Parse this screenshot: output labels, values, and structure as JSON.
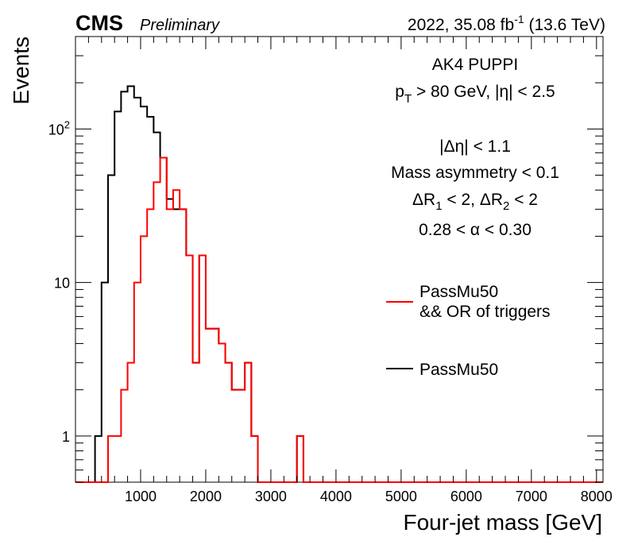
{
  "header": {
    "experiment": "CMS",
    "status": "Preliminary",
    "lumi_pre": "2022, 35.08 fb",
    "lumi_exp": "-1",
    "lumi_post": " (13.6 TeV)"
  },
  "annotations": {
    "jet_algo": "AK4 PUPPI",
    "pt_pre": "p",
    "pt_sub": "T",
    "pt_post": " > 80 GeV, |η| < 2.5",
    "deta": "|Δη| < 1.1",
    "mass_asym": "Mass asymmetry < 0.1",
    "dr_a": "ΔR",
    "dr_a_sub": "1",
    "dr_mid": " < 2, ΔR",
    "dr_b_sub": "2",
    "dr_post": " < 2",
    "alpha": "0.28 < α < 0.30"
  },
  "legend": {
    "entries": [
      {
        "line1": "PassMu50",
        "line2": "&& OR of triggers",
        "color": "#ff0000"
      },
      {
        "line1": "PassMu50",
        "line2": "",
        "color": "#000000"
      }
    ]
  },
  "chart_data": {
    "type": "histogram",
    "xlabel": "Four-jet mass [GeV]",
    "ylabel": "Events",
    "xlim": [
      0,
      8100
    ],
    "ylim": [
      0.5,
      400
    ],
    "log_y": true,
    "grid": false,
    "legend_position": "right-middle",
    "bin_width": 100,
    "x_ticks": [
      1000,
      2000,
      3000,
      4000,
      5000,
      6000,
      7000,
      8000
    ],
    "x_tick_labels": [
      "1000",
      "2000",
      "3000",
      "4000",
      "5000",
      "6000",
      "7000",
      "8000"
    ],
    "y_ticks": [
      1,
      10,
      100
    ],
    "y_tick_labels": [
      "1",
      "10",
      "10^2"
    ],
    "series": [
      {
        "name": "PassMu50 && OR of triggers",
        "color": "#ff0000",
        "bins": [
          [
            500,
            1
          ],
          [
            600,
            1
          ],
          [
            700,
            2
          ],
          [
            800,
            3
          ],
          [
            900,
            10
          ],
          [
            1000,
            20
          ],
          [
            1100,
            30
          ],
          [
            1200,
            45
          ],
          [
            1300,
            65
          ],
          [
            1400,
            30
          ],
          [
            1500,
            40
          ],
          [
            1600,
            30
          ],
          [
            1700,
            15
          ],
          [
            1800,
            3
          ],
          [
            1900,
            15
          ],
          [
            2000,
            5
          ],
          [
            2100,
            5
          ],
          [
            2200,
            4
          ],
          [
            2300,
            3
          ],
          [
            2400,
            2
          ],
          [
            2500,
            2
          ],
          [
            2600,
            3
          ],
          [
            2700,
            1
          ],
          [
            3400,
            1
          ]
        ]
      },
      {
        "name": "PassMu50",
        "color": "#000000",
        "bins": [
          [
            300,
            1
          ],
          [
            400,
            10
          ],
          [
            500,
            50
          ],
          [
            600,
            130
          ],
          [
            700,
            175
          ],
          [
            800,
            190
          ],
          [
            900,
            160
          ],
          [
            1000,
            140
          ],
          [
            1100,
            120
          ],
          [
            1200,
            95
          ],
          [
            1300,
            65
          ],
          [
            1400,
            35
          ],
          [
            1500,
            30
          ],
          [
            1600,
            30
          ],
          [
            1700,
            15
          ],
          [
            1800,
            3
          ],
          [
            1900,
            15
          ],
          [
            2000,
            5
          ],
          [
            2100,
            5
          ],
          [
            2200,
            4
          ],
          [
            2300,
            3
          ],
          [
            2400,
            2
          ],
          [
            2500,
            2
          ],
          [
            2600,
            3
          ],
          [
            2700,
            1
          ],
          [
            3400,
            1
          ]
        ]
      }
    ]
  }
}
